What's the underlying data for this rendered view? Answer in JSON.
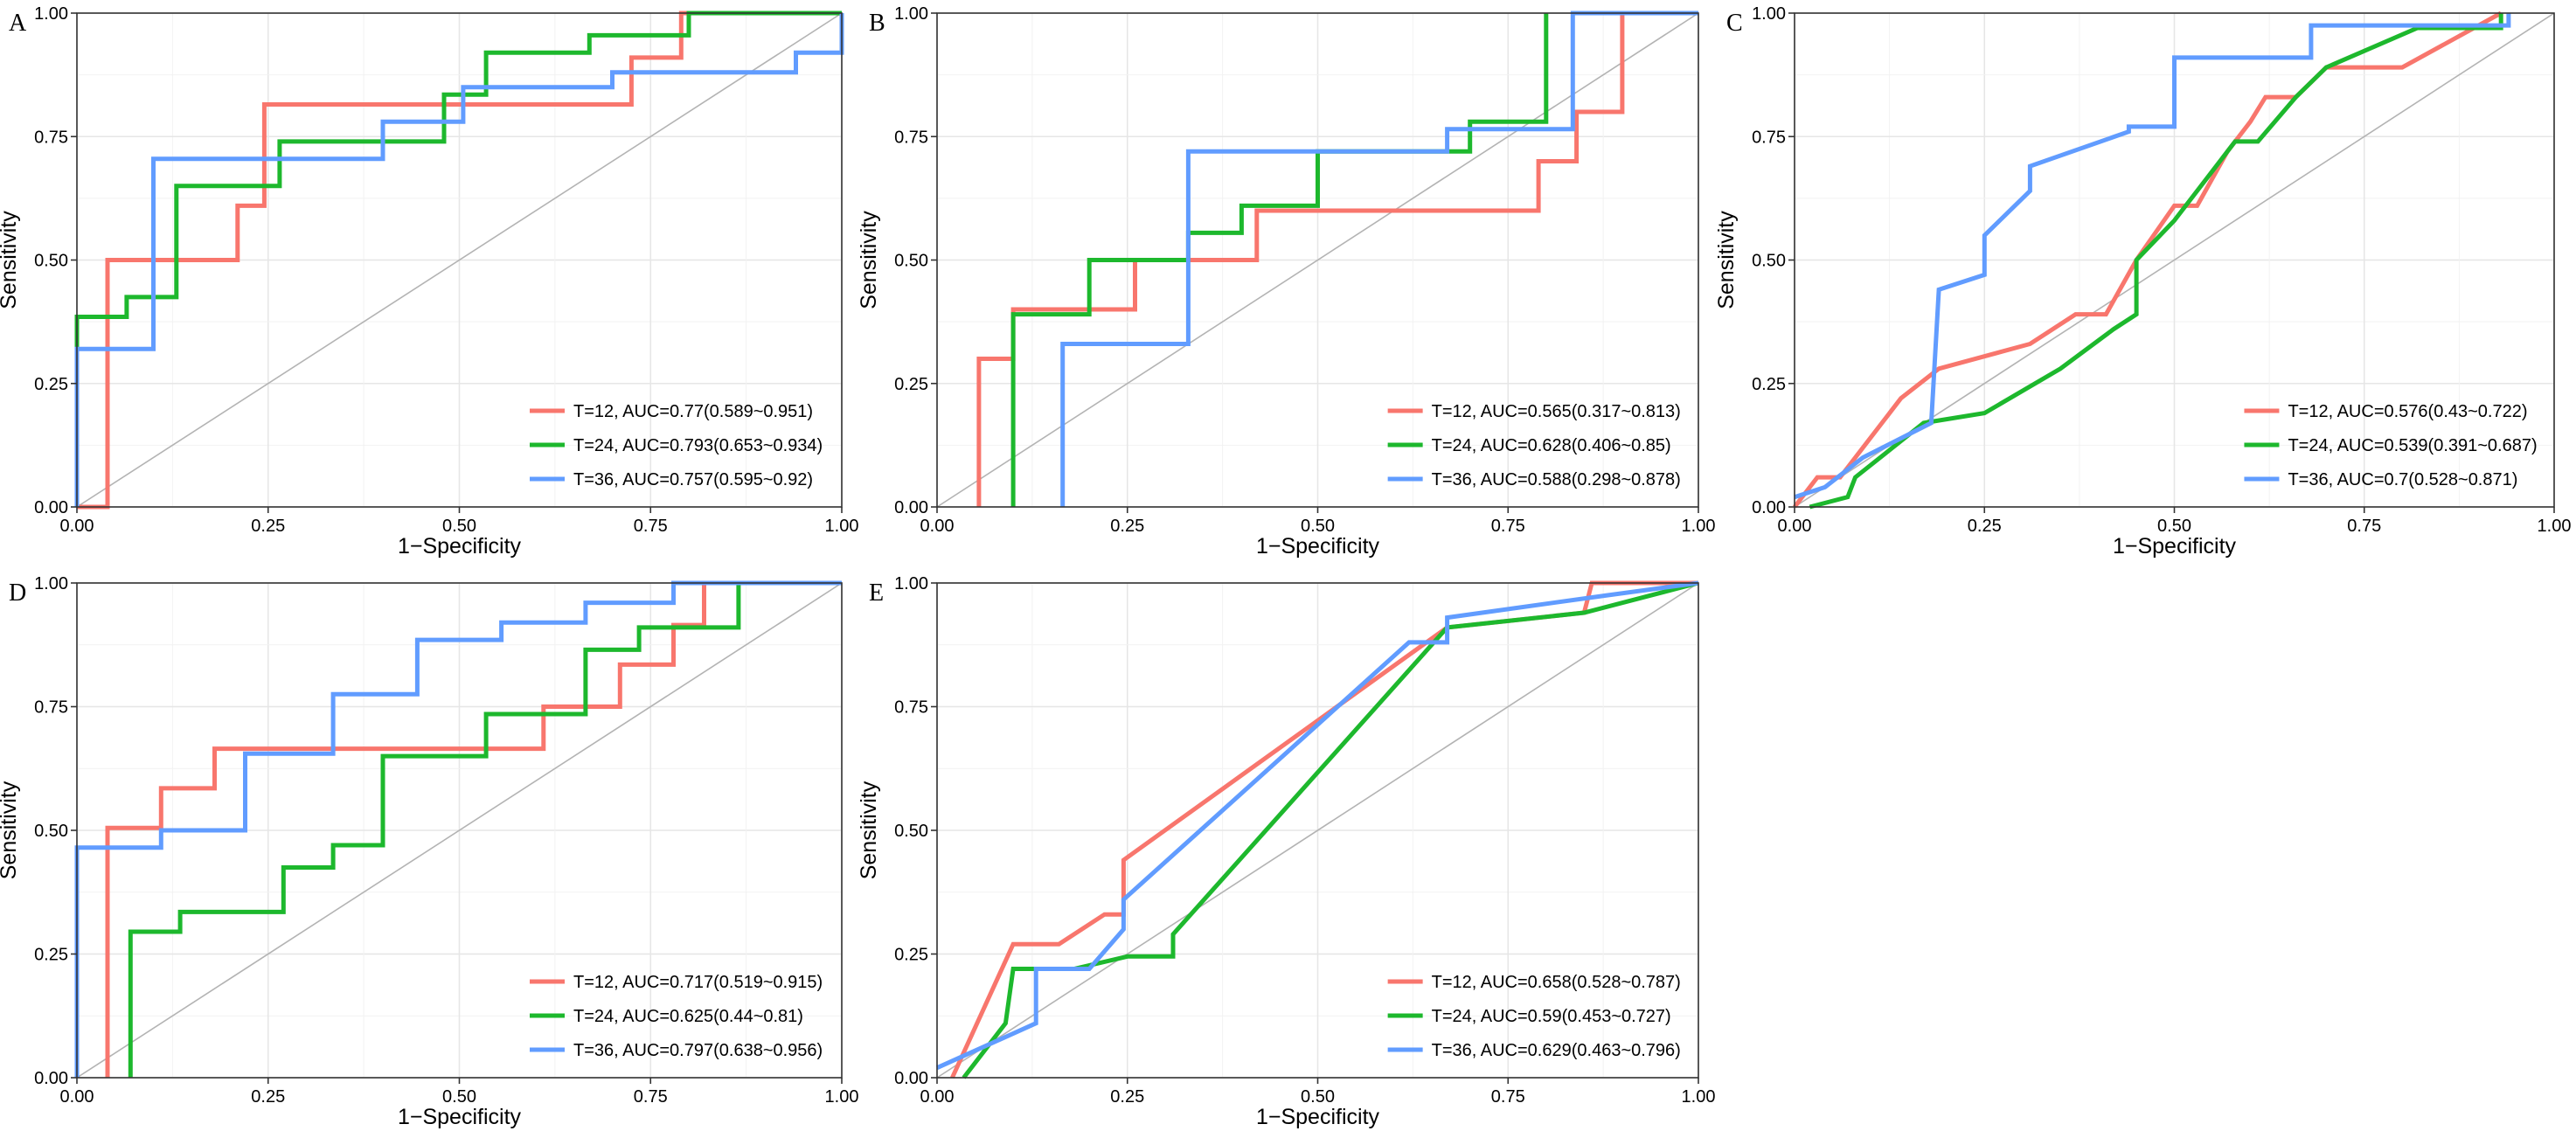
{
  "figure": {
    "panel_letters": [
      "A",
      "B",
      "C",
      "D",
      "E"
    ]
  },
  "chart_data": [
    {
      "panel": "A",
      "type": "line",
      "xlabel": "1−Specificity",
      "ylabel": "Sensitivity",
      "xlim": [
        0,
        1
      ],
      "ylim": [
        0,
        1
      ],
      "xticks": [
        "0.00",
        "0.25",
        "0.50",
        "0.75",
        "1.00"
      ],
      "yticks": [
        "0.00",
        "0.25",
        "0.50",
        "0.75",
        "1.00"
      ],
      "grid": true,
      "legend_position": "bottom-right",
      "reference_line": true,
      "series": [
        {
          "name": "T=12, AUC=0.77(0.589~0.951)",
          "color": "#F8766D",
          "x": [
            0,
            0.04,
            0.04,
            0.21,
            0.21,
            0.245,
            0.245,
            0.725,
            0.725,
            0.79,
            0.79,
            1
          ],
          "y": [
            0,
            0,
            0.5,
            0.5,
            0.61,
            0.61,
            0.815,
            0.815,
            0.91,
            0.91,
            1,
            1
          ]
        },
        {
          "name": "T=24, AUC=0.793(0.653~0.934)",
          "color": "#1DB82D",
          "x": [
            0,
            0,
            0.065,
            0.065,
            0.13,
            0.13,
            0.265,
            0.265,
            0.48,
            0.48,
            0.535,
            0.535,
            0.67,
            0.67,
            0.8,
            0.8,
            1
          ],
          "y": [
            0,
            0.385,
            0.385,
            0.425,
            0.425,
            0.65,
            0.65,
            0.74,
            0.74,
            0.835,
            0.835,
            0.92,
            0.92,
            0.955,
            0.955,
            1,
            1
          ]
        },
        {
          "name": "T=36, AUC=0.757(0.595~0.92)",
          "color": "#619CFF",
          "x": [
            0,
            0,
            0.1,
            0.1,
            0.4,
            0.4,
            0.505,
            0.505,
            0.7,
            0.7,
            0.94,
            0.94,
            1,
            1
          ],
          "y": [
            0,
            0.32,
            0.32,
            0.705,
            0.705,
            0.78,
            0.78,
            0.85,
            0.85,
            0.88,
            0.88,
            0.92,
            0.92,
            1
          ]
        }
      ]
    },
    {
      "panel": "B",
      "type": "line",
      "xlabel": "1−Specificity",
      "ylabel": "Sensitivity",
      "xlim": [
        0,
        1
      ],
      "ylim": [
        0,
        1
      ],
      "xticks": [
        "0.00",
        "0.25",
        "0.50",
        "0.75",
        "1.00"
      ],
      "yticks": [
        "0.00",
        "0.25",
        "0.50",
        "0.75",
        "1.00"
      ],
      "grid": true,
      "legend_position": "bottom-right",
      "reference_line": true,
      "series": [
        {
          "name": "T=12, AUC=0.565(0.317~0.813)",
          "color": "#F8766D",
          "x": [
            0.055,
            0.055,
            0.1,
            0.1,
            0.26,
            0.26,
            0.42,
            0.42,
            0.79,
            0.79,
            0.84,
            0.84,
            0.9,
            0.9
          ],
          "y": [
            0,
            0.3,
            0.3,
            0.4,
            0.4,
            0.5,
            0.5,
            0.6,
            0.6,
            0.7,
            0.7,
            0.8,
            0.8,
            1
          ]
        },
        {
          "name": "T=24, AUC=0.628(0.406~0.85)",
          "color": "#1DB82D",
          "x": [
            0.1,
            0.1,
            0.2,
            0.2,
            0.33,
            0.33,
            0.4,
            0.4,
            0.5,
            0.5,
            0.7,
            0.7,
            0.8,
            0.8
          ],
          "y": [
            0,
            0.39,
            0.39,
            0.5,
            0.5,
            0.555,
            0.555,
            0.61,
            0.61,
            0.72,
            0.72,
            0.78,
            0.78,
            1
          ]
        },
        {
          "name": "T=36, AUC=0.588(0.298~0.878)",
          "color": "#619CFF",
          "x": [
            0.165,
            0.165,
            0.33,
            0.33,
            0.67,
            0.67,
            0.835,
            0.835,
            1
          ],
          "y": [
            0,
            0.33,
            0.33,
            0.72,
            0.72,
            0.765,
            0.765,
            1,
            1
          ]
        }
      ]
    },
    {
      "panel": "C",
      "type": "line",
      "xlabel": "1−Specificity",
      "ylabel": "Sensitivity",
      "xlim": [
        0,
        1
      ],
      "ylim": [
        0,
        1
      ],
      "xticks": [
        "0.00",
        "0.25",
        "0.50",
        "0.75",
        "1.00"
      ],
      "yticks": [
        "0.00",
        "0.25",
        "0.50",
        "0.75",
        "1.00"
      ],
      "grid": true,
      "legend_position": "bottom-right",
      "reference_line": true,
      "series": [
        {
          "name": "T=12, AUC=0.576(0.43~0.722)",
          "color": "#F8766D",
          "x": [
            0,
            0.03,
            0.06,
            0.14,
            0.19,
            0.31,
            0.37,
            0.41,
            0.45,
            0.5,
            0.53,
            0.57,
            0.6,
            0.62,
            0.66,
            0.7,
            0.8,
            0.93
          ],
          "y": [
            0,
            0.06,
            0.06,
            0.22,
            0.28,
            0.33,
            0.39,
            0.39,
            0.5,
            0.61,
            0.61,
            0.72,
            0.78,
            0.83,
            0.83,
            0.89,
            0.89,
            1
          ]
        },
        {
          "name": "T=24, AUC=0.539(0.391~0.687)",
          "color": "#1DB82D",
          "x": [
            0.02,
            0.07,
            0.08,
            0.17,
            0.25,
            0.35,
            0.42,
            0.45,
            0.45,
            0.5,
            0.53,
            0.58,
            0.61,
            0.66,
            0.7,
            0.82,
            0.93,
            0.93
          ],
          "y": [
            0,
            0.02,
            0.06,
            0.17,
            0.19,
            0.28,
            0.36,
            0.39,
            0.5,
            0.58,
            0.64,
            0.74,
            0.74,
            0.83,
            0.89,
            0.97,
            0.97,
            1
          ]
        },
        {
          "name": "T=36, AUC=0.7(0.528~0.871)",
          "color": "#619CFF",
          "x": [
            0,
            0.04,
            0.09,
            0.18,
            0.19,
            0.25,
            0.25,
            0.31,
            0.31,
            0.44,
            0.44,
            0.5,
            0.5,
            0.68,
            0.68,
            0.94,
            0.94
          ],
          "y": [
            0.02,
            0.04,
            0.1,
            0.17,
            0.44,
            0.47,
            0.55,
            0.64,
            0.69,
            0.76,
            0.77,
            0.77,
            0.91,
            0.91,
            0.975,
            0.975,
            1
          ]
        }
      ]
    },
    {
      "panel": "D",
      "type": "line",
      "xlabel": "1−Specificity",
      "ylabel": "Sensitivity",
      "xlim": [
        0,
        1
      ],
      "ylim": [
        0,
        1
      ],
      "xticks": [
        "0.00",
        "0.25",
        "0.50",
        "0.75",
        "1.00"
      ],
      "yticks": [
        "0.00",
        "0.25",
        "0.50",
        "0.75",
        "1.00"
      ],
      "grid": true,
      "legend_position": "bottom-right",
      "reference_line": true,
      "series": [
        {
          "name": "T=12, AUC=0.717(0.519~0.915)",
          "color": "#F8766D",
          "x": [
            0.04,
            0.04,
            0.11,
            0.11,
            0.18,
            0.18,
            0.61,
            0.61,
            0.71,
            0.71,
            0.78,
            0.78,
            0.82,
            0.82
          ],
          "y": [
            0,
            0.505,
            0.505,
            0.585,
            0.585,
            0.665,
            0.665,
            0.75,
            0.75,
            0.835,
            0.835,
            0.915,
            0.915,
            1
          ]
        },
        {
          "name": "T=24, AUC=0.625(0.44~0.81)",
          "color": "#1DB82D",
          "x": [
            0.07,
            0.07,
            0.135,
            0.135,
            0.27,
            0.27,
            0.335,
            0.335,
            0.4,
            0.4,
            0.535,
            0.535,
            0.665,
            0.665,
            0.735,
            0.735,
            0.865,
            0.865
          ],
          "y": [
            0,
            0.295,
            0.295,
            0.335,
            0.335,
            0.425,
            0.425,
            0.47,
            0.47,
            0.65,
            0.65,
            0.735,
            0.735,
            0.865,
            0.865,
            0.91,
            0.91,
            1
          ]
        },
        {
          "name": "T=36, AUC=0.797(0.638~0.956)",
          "color": "#619CFF",
          "x": [
            0,
            0,
            0.11,
            0.11,
            0.22,
            0.22,
            0.335,
            0.335,
            0.445,
            0.445,
            0.555,
            0.555,
            0.665,
            0.665,
            0.78,
            0.78,
            1
          ],
          "y": [
            0,
            0.465,
            0.465,
            0.5,
            0.5,
            0.655,
            0.655,
            0.775,
            0.775,
            0.885,
            0.885,
            0.92,
            0.92,
            0.96,
            0.96,
            1,
            1
          ]
        }
      ]
    },
    {
      "panel": "E",
      "type": "line",
      "xlabel": "1−Specificity",
      "ylabel": "Sensitivity",
      "xlim": [
        0,
        1
      ],
      "ylim": [
        0,
        1
      ],
      "xticks": [
        "0.00",
        "0.25",
        "0.50",
        "0.75",
        "1.00"
      ],
      "yticks": [
        "0.00",
        "0.25",
        "0.50",
        "0.75",
        "1.00"
      ],
      "grid": true,
      "legend_position": "bottom-right",
      "reference_line": true,
      "series": [
        {
          "name": "T=12, AUC=0.658(0.528~0.787)",
          "color": "#F8766D",
          "x": [
            0.02,
            0.1,
            0.16,
            0.22,
            0.245,
            0.245,
            0.67,
            0.85,
            0.86,
            1
          ],
          "y": [
            0,
            0.27,
            0.27,
            0.33,
            0.33,
            0.44,
            0.91,
            0.94,
            1,
            1
          ]
        },
        {
          "name": "T=24, AUC=0.59(0.453~0.727)",
          "color": "#1DB82D",
          "x": [
            0.035,
            0.09,
            0.1,
            0.18,
            0.25,
            0.31,
            0.31,
            0.67,
            0.85,
            1
          ],
          "y": [
            0,
            0.11,
            0.22,
            0.22,
            0.245,
            0.245,
            0.29,
            0.91,
            0.94,
            1
          ]
        },
        {
          "name": "T=36, AUC=0.629(0.463~0.796)",
          "color": "#619CFF",
          "x": [
            0,
            0.13,
            0.13,
            0.2,
            0.245,
            0.245,
            0.62,
            0.67,
            0.67,
            0.88,
            1
          ],
          "y": [
            0.02,
            0.11,
            0.22,
            0.22,
            0.3,
            0.36,
            0.88,
            0.88,
            0.93,
            0.975,
            1
          ]
        }
      ]
    }
  ]
}
